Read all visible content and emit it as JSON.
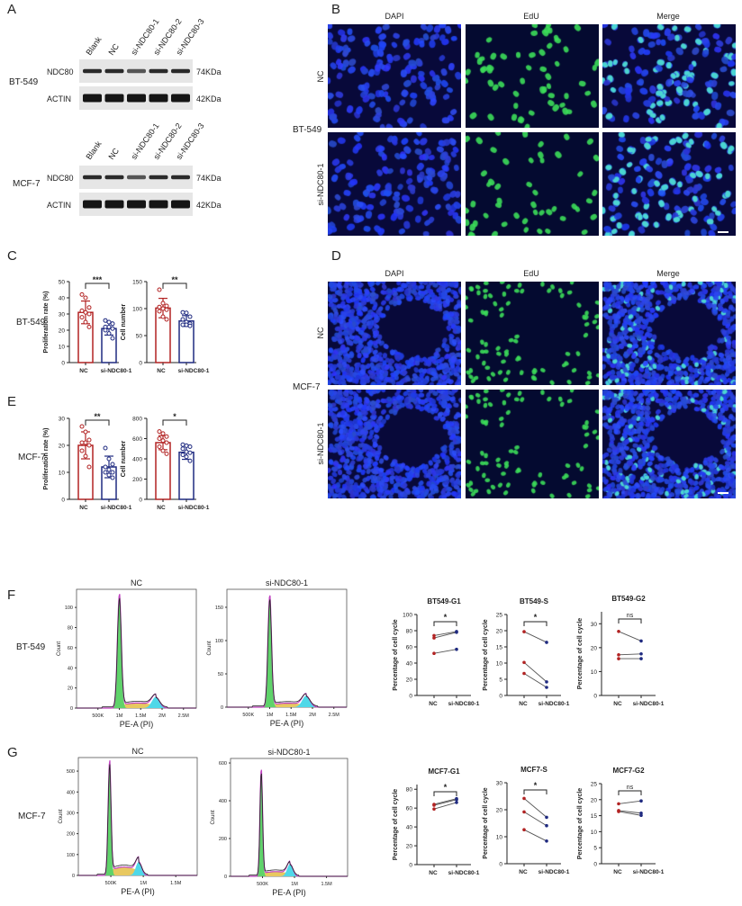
{
  "panels": {
    "A": "A",
    "B": "B",
    "C": "C",
    "D": "D",
    "E": "E",
    "F": "F",
    "G": "G"
  },
  "cell_lines": {
    "bt549": "BT-549",
    "mcf7": "MCF-7"
  },
  "western_blot": {
    "lanes": [
      "Blank",
      "NC",
      "si-NDC80-1",
      "si-NDC80-2",
      "si-NDC80-3"
    ],
    "proteins": [
      "NDC80",
      "ACTIN"
    ],
    "sizes": [
      "74KDa",
      "42KDa"
    ]
  },
  "microscopy": {
    "columns": [
      "DAPI",
      "EdU",
      "Merge"
    ],
    "rows": [
      "NC",
      "si-NDC80-1"
    ],
    "colors": {
      "dapi": "#1f3be0",
      "edu": "#38e060",
      "background": "#06082e"
    }
  },
  "flow": {
    "headers": [
      "NC",
      "si-NDC80-1"
    ],
    "xlabel": "PE-A (PI)",
    "ylabel": "Count"
  },
  "chart_data": [
    {
      "id": "C1",
      "type": "bar",
      "cell_line": "BT-549",
      "ylabel": "Proliferation rate (%)",
      "categories": [
        "NC",
        "si-NDC80-1"
      ],
      "ylim": [
        0,
        50
      ],
      "yticks": [
        0,
        10,
        20,
        30,
        40,
        50
      ],
      "series": [
        {
          "values": [
            31,
            21
          ],
          "sd": [
            7,
            4
          ],
          "points": [
            [
              42,
              40,
              34,
              32,
              31,
              30,
              28,
              25,
              22
            ],
            [
              26,
              25,
              24,
              22,
              22,
              21,
              20,
              18,
              15
            ]
          ]
        }
      ],
      "significance": "***",
      "colors": [
        "#b22222",
        "#1f2a80"
      ]
    },
    {
      "id": "C2",
      "type": "bar",
      "cell_line": "BT-549",
      "ylabel": "Cell number",
      "categories": [
        "NC",
        "si-NDC80-1"
      ],
      "ylim": [
        0,
        150
      ],
      "yticks": [
        0,
        50,
        100,
        150
      ],
      "series": [
        {
          "values": [
            101,
            77
          ],
          "sd": [
            18,
            10
          ],
          "points": [
            [
              135,
              110,
              105,
              103,
              100,
              98,
              95,
              85,
              80
            ],
            [
              93,
              92,
              85,
              80,
              75,
              72,
              70,
              70,
              68
            ]
          ]
        }
      ],
      "significance": "**",
      "colors": [
        "#b22222",
        "#1f2a80"
      ]
    },
    {
      "id": "E1",
      "type": "bar",
      "cell_line": "MCF-7",
      "ylabel": "Proliferation rate (%)",
      "categories": [
        "NC",
        "si-NDC80-1"
      ],
      "ylim": [
        0,
        30
      ],
      "yticks": [
        0,
        10,
        20,
        30
      ],
      "series": [
        {
          "values": [
            20,
            12
          ],
          "sd": [
            5,
            4
          ],
          "points": [
            [
              27,
              25,
              22,
              21,
              21,
              20,
              18,
              16,
              12
            ],
            [
              19,
              15,
              13,
              12,
              11,
              10,
              10,
              9,
              8
            ]
          ]
        }
      ],
      "significance": "**",
      "colors": [
        "#b22222",
        "#1f2a80"
      ]
    },
    {
      "id": "E2",
      "type": "bar",
      "cell_line": "MCF-7",
      "ylabel": "Cell number",
      "categories": [
        "NC",
        "si-NDC80-1"
      ],
      "ylim": [
        0,
        800
      ],
      "yticks": [
        0,
        200,
        400,
        600,
        800
      ],
      "series": [
        {
          "values": [
            560,
            465
          ],
          "sd": [
            70,
            70
          ],
          "points": [
            [
              670,
              650,
              620,
              600,
              580,
              560,
              520,
              480,
              450
            ],
            [
              540,
              530,
              520,
              500,
              470,
              460,
              440,
              420,
              380
            ]
          ]
        }
      ],
      "significance": "*",
      "colors": [
        "#b22222",
        "#1f2a80"
      ]
    },
    {
      "id": "F1",
      "type": "area",
      "title": "NC",
      "cell_line": "BT-549",
      "xlabel": "PE-A (PI)",
      "ylabel": "Count",
      "xlim": [
        0,
        2800000
      ],
      "ylim": [
        0,
        118
      ],
      "xticks": [
        500000,
        1000000,
        1500000,
        2000000,
        2500000
      ],
      "xtick_labels": [
        "500K",
        "1M",
        "1.5M",
        "2M",
        "2.5M"
      ],
      "yticks": [
        0,
        20,
        40,
        60,
        80,
        100
      ],
      "peaks": {
        "g1": {
          "x": 1000000,
          "height": 112,
          "sd": 45000
        },
        "s": {
          "height": 5
        },
        "g2": {
          "x": 1850000,
          "height": 11,
          "sd": 90000
        }
      }
    },
    {
      "id": "F2",
      "type": "area",
      "title": "si-NDC80-1",
      "cell_line": "BT-549",
      "xlabel": "PE-A (PI)",
      "ylabel": "Count",
      "xlim": [
        0,
        2800000
      ],
      "ylim": [
        0,
        177
      ],
      "xticks": [
        500000,
        1000000,
        1500000,
        2000000,
        2500000
      ],
      "xtick_labels": [
        "500K",
        "1M",
        "1.5M",
        "2M",
        "2.5M"
      ],
      "yticks": [
        0,
        50,
        100,
        150
      ],
      "peaks": {
        "g1": {
          "x": 1000000,
          "height": 167,
          "sd": 42000
        },
        "s": {
          "height": 6
        },
        "g2": {
          "x": 1850000,
          "height": 17,
          "sd": 90000
        }
      }
    },
    {
      "id": "G1",
      "type": "area",
      "title": "NC",
      "cell_line": "MCF-7",
      "xlabel": "PE-A (PI)",
      "ylabel": "Count",
      "xlim": [
        0,
        1830000
      ],
      "ylim": [
        0,
        565
      ],
      "xticks": [
        500000,
        1000000,
        1500000
      ],
      "xtick_labels": [
        "500K",
        "1M",
        "1.5M"
      ],
      "yticks": [
        0,
        100,
        200,
        300,
        400,
        500
      ],
      "peaks": {
        "g1": {
          "x": 480000,
          "height": 540,
          "sd": 22000
        },
        "s": {
          "height": 40
        },
        "g2": {
          "x": 930000,
          "height": 65,
          "sd": 45000
        }
      }
    },
    {
      "id": "G2",
      "type": "area",
      "title": "si-NDC80-1",
      "cell_line": "MCF-7",
      "xlabel": "PE-A (PI)",
      "ylabel": "Count",
      "xlim": [
        0,
        1830000
      ],
      "ylim": [
        0,
        624
      ],
      "xticks": [
        500000,
        1000000,
        1500000
      ],
      "xtick_labels": [
        "500K",
        "1M",
        "1.5M"
      ],
      "yticks": [
        0,
        200,
        400,
        600
      ],
      "peaks": {
        "g1": {
          "x": 480000,
          "height": 565,
          "sd": 20000
        },
        "s": {
          "height": 25
        },
        "g2": {
          "x": 930000,
          "height": 65,
          "sd": 45000
        }
      }
    },
    {
      "id": "P1",
      "type": "line",
      "title": "BT549-G1",
      "ylabel": "Percentage of cell cycle",
      "categories": [
        "NC",
        "si-NDC80-1"
      ],
      "ylim": [
        0,
        100
      ],
      "yticks": [
        0,
        20,
        40,
        60,
        80,
        100
      ],
      "pairs": [
        [
          74,
          79
        ],
        [
          71,
          78
        ],
        [
          52,
          57
        ]
      ],
      "significance": "*"
    },
    {
      "id": "P2",
      "type": "line",
      "title": "BT549-S",
      "ylabel": "Percentage of cell cycle",
      "categories": [
        "NC",
        "si-NDC80-1"
      ],
      "ylim": [
        0,
        25
      ],
      "yticks": [
        0,
        5,
        10,
        15,
        20,
        25
      ],
      "pairs": [
        [
          19.7,
          16.4
        ],
        [
          10.2,
          4.2
        ],
        [
          6.8,
          2.5
        ]
      ],
      "significance": "*"
    },
    {
      "id": "P3",
      "type": "line",
      "title": "BT549-G2",
      "ylabel": "Percentage of cell cycle",
      "categories": [
        "NC",
        "si-NDC80-1"
      ],
      "ylim": [
        0,
        35
      ],
      "yticks": [
        0,
        10,
        20,
        30
      ],
      "pairs": [
        [
          26.8,
          22.8
        ],
        [
          17,
          17.4
        ],
        [
          15.4,
          15.4
        ]
      ],
      "significance": "ns"
    },
    {
      "id": "P4",
      "type": "line",
      "title": "MCF7-G1",
      "ylabel": "Percentage of cell cycle",
      "categories": [
        "NC",
        "si-NDC80-1"
      ],
      "ylim": [
        0,
        85
      ],
      "yticks": [
        0,
        20,
        40,
        60,
        80
      ],
      "pairs": [
        [
          64,
          70
        ],
        [
          63,
          69
        ],
        [
          59,
          66
        ]
      ],
      "significance": "*"
    },
    {
      "id": "P5",
      "type": "line",
      "title": "MCF7-S",
      "ylabel": "Percentage of cell cycle",
      "categories": [
        "NC",
        "si-NDC80-1"
      ],
      "ylim": [
        0,
        30
      ],
      "yticks": [
        0,
        10,
        20,
        30
      ],
      "pairs": [
        [
          24.2,
          17.2
        ],
        [
          19.2,
          14.1
        ],
        [
          12.6,
          8.4
        ]
      ],
      "significance": "*"
    },
    {
      "id": "P6",
      "type": "line",
      "title": "MCF7-G2",
      "ylabel": "Percentage of cell cycle",
      "categories": [
        "NC",
        "si-NDC80-1"
      ],
      "ylim": [
        0,
        25
      ],
      "yticks": [
        0,
        5,
        10,
        15,
        20,
        25
      ],
      "pairs": [
        [
          18.7,
          19.6
        ],
        [
          16.6,
          15.8
        ],
        [
          16.3,
          15.1
        ]
      ],
      "significance": "ns"
    }
  ]
}
